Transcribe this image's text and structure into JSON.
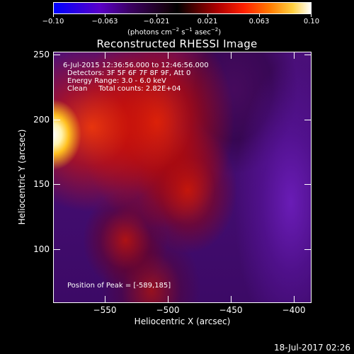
{
  "colorbar": {
    "tick_labels": [
      "−0.10",
      "−0.063",
      "−0.021",
      "0.021",
      "0.063",
      "0.10"
    ],
    "units_text": "(photons cm",
    "units_exp1": "−2",
    "units_mid1": " s",
    "units_exp2": "−1",
    "units_mid2": " asec",
    "units_exp3": "−2",
    "units_end": ")"
  },
  "title": "Reconstructed RHESSI Image",
  "info": {
    "line1": "6-Jul-2015 12:36:56.000 to 12:46:56.000",
    "line2": "Detectors: 3F 5F 6F 7F 8F 9F, Att 0",
    "line3": "Energy Range: 3.0 - 6.0 keV",
    "line4": "Clean     Total counts: 2.82E+04"
  },
  "peak_text": "Position of Peak = [-589,185]",
  "axes": {
    "xlabel": "Heliocentric X (arcsec)",
    "ylabel": "Heliocentric Y (arcsec)",
    "xticks": [
      "−550",
      "−500",
      "−450",
      "−400"
    ],
    "yticks": [
      "250",
      "200",
      "150",
      "100"
    ]
  },
  "timestamp": "18-Jul-2017 02:26"
}
